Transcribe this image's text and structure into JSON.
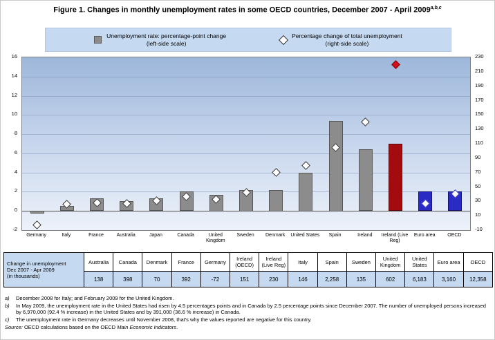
{
  "figure": {
    "title_prefix": "Figure 1.",
    "title_main": " Changes in monthly unemployment rates in some OECD countries, December 2007 - April 2009",
    "title_superscript": "a,b,c"
  },
  "legend": {
    "bar_item": {
      "line1": "Unemployment rate: percentage-point change",
      "line2": "(left-side scale)"
    },
    "diamond_item": {
      "line1": "Percentage change of total unemployment",
      "line2": "(right-side scale)"
    }
  },
  "chart_data": {
    "type": "bar",
    "title": "Figure 1. Changes in monthly unemployment rates in some OECD countries, December 2007 - April 2009",
    "categories": [
      "Germany",
      "Italy",
      "France",
      "Australia",
      "Japan",
      "Canada",
      "United Kingdom",
      "Sweden",
      "Denmark",
      "United States",
      "Spain",
      "Ireland",
      "Ireland (Live Reg)",
      "Euro area",
      "OECD"
    ],
    "series": [
      {
        "name": "Unemployment rate: percentage-point change (left-side scale)",
        "type": "bar",
        "axis": "left",
        "values": [
          -0.3,
          0.5,
          1.3,
          1.0,
          1.3,
          2.0,
          1.7,
          2.2,
          2.2,
          4.0,
          9.4,
          6.4,
          7.0,
          2.0,
          2.0
        ],
        "styles": [
          "gray",
          "gray",
          "gray",
          "gray",
          "gray",
          "gray",
          "gray",
          "gray",
          "gray",
          "gray",
          "gray",
          "gray",
          "red",
          "blue",
          "blue"
        ]
      },
      {
        "name": "Percentage change of total unemployment (right-side scale)",
        "type": "scatter",
        "marker": "diamond",
        "axis": "right",
        "values": [
          -3,
          26,
          28,
          27,
          31,
          37,
          33,
          42,
          70,
          80,
          105,
          140,
          220,
          27,
          40
        ],
        "styles": [
          "white",
          "white",
          "white",
          "white",
          "white",
          "white",
          "white",
          "white",
          "white",
          "white",
          "white",
          "white",
          "red",
          "white-blue",
          "white-blue"
        ]
      }
    ],
    "left_axis": {
      "min": -2,
      "max": 16,
      "step": 2,
      "ticks": [
        16,
        14,
        12,
        10,
        8,
        6,
        4,
        2,
        0,
        -2
      ]
    },
    "right_axis": {
      "min": -10,
      "max": 230,
      "step": 20,
      "ticks": [
        230,
        210,
        190,
        170,
        150,
        130,
        110,
        90,
        70,
        50,
        30,
        10,
        -10
      ]
    },
    "grid": true,
    "legend_position": "top",
    "colors": {
      "bar_gray": "#8c8c8c",
      "bar_red": "#a30b0e",
      "bar_blue": "#2a2ac4",
      "marker_white": "#ffffff",
      "marker_red": "#d4101c",
      "plot_bg_top": "#9db7db",
      "plot_bg_bottom": "#edf2fa",
      "table_fill": "#c5d9f1"
    }
  },
  "table": {
    "row_label_lines": [
      "Change in unemployment",
      "Dec 2007 - Apr 2009",
      "(in thousands)"
    ],
    "columns": [
      "Australia",
      "Canada",
      "Denmark",
      "France",
      "Germany",
      "Ireland (OECD)",
      "Ireland (Live Reg)",
      "Italy",
      "Spain",
      "Sweden",
      "United Kingdom",
      "United States",
      "Euro area",
      "OECD"
    ],
    "values": [
      "138",
      "398",
      "70",
      "392",
      "-72",
      "151",
      "230",
      "146",
      "2,258",
      "135",
      "602",
      "6,183",
      "3,160",
      "12,358"
    ]
  },
  "footnotes": [
    {
      "marker": "a)",
      "text": "December 2008 for Italy; and February 2009 for the United Kingdom."
    },
    {
      "marker": "b)",
      "text": "In May 2009, the unemployment rate in the United States had risen by 4.5 percentages points and in Canada by 2.5 percentage points since December 2007. The number of unemployed persons increased by 6,970,000 (92.4 % increase) in the United States and by 391,000 (36.6 % increase) in Canada."
    },
    {
      "marker": "c)",
      "text": "The unemployment rate in Germany decreases until November 2008, that's why the values reported are negative for this country."
    }
  ],
  "source": {
    "label": "Source:",
    "text": " OECD calculations based on the OECD ",
    "italic": "Main Economic Indicators",
    "suffix": "."
  }
}
